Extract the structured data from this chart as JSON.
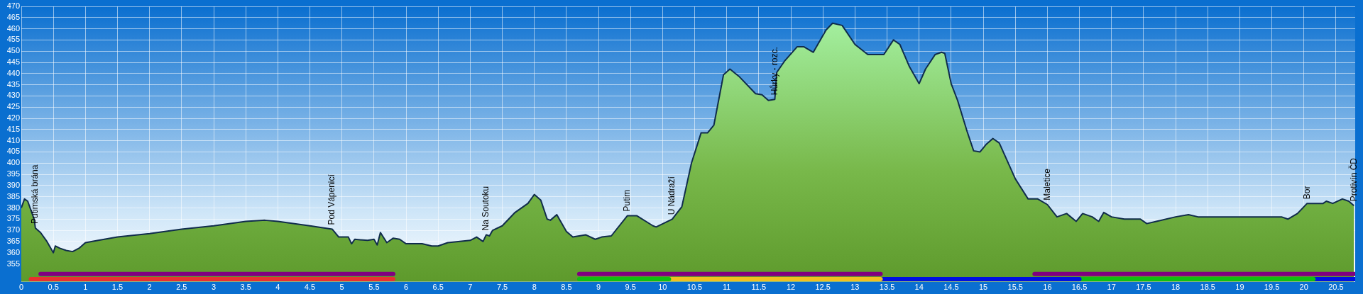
{
  "chart_data": {
    "type": "area",
    "x": [
      0,
      0.05,
      0.1,
      0.2,
      0.22,
      0.3,
      0.4,
      0.5,
      0.53,
      0.6,
      0.7,
      0.8,
      0.9,
      1.0,
      1.2,
      1.5,
      2.0,
      2.5,
      3.0,
      3.5,
      3.8,
      4.0,
      4.5,
      4.85,
      4.95,
      5.1,
      5.15,
      5.2,
      5.4,
      5.5,
      5.55,
      5.6,
      5.7,
      5.8,
      5.9,
      6.0,
      6.25,
      6.4,
      6.5,
      6.65,
      7.0,
      7.1,
      7.2,
      7.25,
      7.3,
      7.35,
      7.5,
      7.7,
      7.9,
      8.0,
      8.1,
      8.2,
      8.25,
      8.35,
      8.5,
      8.6,
      8.8,
      8.95,
      9.05,
      9.2,
      9.45,
      9.6,
      9.85,
      9.9,
      10.15,
      10.3,
      10.45,
      10.6,
      10.7,
      10.8,
      10.95,
      11.05,
      11.2,
      11.45,
      11.55,
      11.65,
      11.75,
      11.78,
      11.9,
      12.1,
      12.2,
      12.35,
      12.55,
      12.65,
      12.8,
      13.0,
      13.2,
      13.45,
      13.6,
      13.7,
      13.85,
      14.0,
      14.1,
      14.25,
      14.35,
      14.4,
      14.5,
      14.6,
      14.75,
      14.85,
      14.95,
      15.05,
      15.15,
      15.25,
      15.5,
      15.7,
      15.85,
      16.0,
      16.15,
      16.3,
      16.45,
      16.55,
      16.7,
      16.8,
      16.88,
      17.0,
      17.2,
      17.45,
      17.55,
      17.7,
      18.0,
      18.2,
      18.35,
      19.0,
      19.65,
      19.75,
      19.9,
      20.05,
      20.3,
      20.35,
      20.45,
      20.6,
      20.7,
      20.78
    ],
    "series": [
      {
        "color": "#78b84a",
        "values": [
          380,
          384,
          383,
          375,
          371,
          369,
          365,
          360,
          363,
          362,
          361,
          360.5,
          362,
          364.5,
          365.5,
          367,
          368.5,
          370.5,
          372,
          374,
          374.5,
          374,
          372,
          370.5,
          367,
          367,
          364,
          366,
          365.5,
          366,
          363.5,
          369,
          364.5,
          366.5,
          366,
          364,
          364,
          363,
          363,
          364.5,
          365.5,
          367,
          365,
          368,
          367.5,
          370,
          372,
          378,
          382,
          386,
          383.5,
          375,
          374.5,
          377,
          369.5,
          367,
          368,
          366,
          367,
          367.5,
          376.5,
          376.5,
          372,
          371.5,
          375,
          380.5,
          400,
          413.5,
          413.5,
          417,
          439.5,
          442,
          438.5,
          431,
          430.5,
          428,
          428.5,
          440.5,
          445.5,
          452,
          452,
          449.5,
          459.5,
          462.5,
          461.5,
          453,
          448.5,
          448.5,
          455,
          453,
          443,
          435.5,
          442,
          448.5,
          449.5,
          449,
          435.5,
          428,
          414,
          405.5,
          405,
          408.5,
          411,
          409,
          393,
          384,
          384,
          381.5,
          376,
          377.5,
          374,
          377.5,
          376,
          374,
          378,
          376,
          375,
          375,
          373,
          374,
          376,
          377,
          376,
          376,
          376,
          375,
          377.5,
          382,
          382,
          383,
          382,
          384,
          383,
          381
        ]
      },
      {
        "type": "line",
        "color": "#800080",
        "x": [
          0.3,
          5.8
        ],
        "values": [
          350.5,
          350.5
        ]
      },
      {
        "type": "line",
        "color": "#800080",
        "x": [
          8.7,
          13.4
        ],
        "values": [
          350.5,
          350.5
        ]
      },
      {
        "type": "line",
        "color": "#800080",
        "x": [
          15.8,
          20.8
        ],
        "values": [
          350.5,
          350.5
        ]
      },
      {
        "type": "line",
        "color": "#e83030",
        "x": [
          0.15,
          5.8
        ],
        "values": [
          348.2,
          348.2
        ]
      },
      {
        "type": "line",
        "color": "#10c010",
        "x": [
          8.7,
          10.1
        ],
        "values": [
          348.2,
          348.2
        ]
      },
      {
        "type": "line",
        "color": "#f0c020",
        "x": [
          10.1,
          13.4
        ],
        "values": [
          348.2,
          348.2
        ]
      },
      {
        "type": "line",
        "color": "#0010e0",
        "x": [
          13.4,
          16.5
        ],
        "values": [
          348.2,
          348.2
        ]
      },
      {
        "type": "line",
        "color": "#10c010",
        "x": [
          16.5,
          20.15
        ],
        "values": [
          348.2,
          348.2
        ]
      },
      {
        "type": "line",
        "color": "#0010e0",
        "x": [
          20.15,
          20.8
        ],
        "values": [
          348.2,
          348.2
        ]
      }
    ],
    "xlim": [
      0,
      20.8
    ],
    "xticks": [
      0,
      0.5,
      1,
      1.5,
      2,
      2.5,
      3,
      3.5,
      4,
      4.5,
      5,
      5.5,
      6,
      6.5,
      7,
      7.5,
      8,
      8.5,
      9,
      9.5,
      10,
      10.5,
      11,
      11.5,
      12,
      12.5,
      13,
      13.5,
      14,
      14.5,
      15,
      15.5,
      16,
      16.5,
      17,
      17.5,
      18,
      18.5,
      19,
      19.5,
      20,
      20.5
    ],
    "ylim": [
      347,
      470
    ],
    "yticks": [
      355,
      360,
      365,
      370,
      375,
      380,
      385,
      390,
      395,
      400,
      405,
      410,
      415,
      420,
      425,
      430,
      435,
      440,
      445,
      450,
      455,
      460,
      465,
      470
    ],
    "grid": true,
    "legend": false,
    "annotations": [
      {
        "text": "Putimská brána",
        "x": 0.22,
        "y": 371
      },
      {
        "text": "Pod Vápenicí",
        "x": 4.85,
        "y": 370.5
      },
      {
        "text": "Na Soutoku",
        "x": 7.25,
        "y": 368
      },
      {
        "text": "Putim",
        "x": 9.45,
        "y": 376.5
      },
      {
        "text": "U Nádraží",
        "x": 10.15,
        "y": 375
      },
      {
        "text": "Hůrky - rozc.",
        "x": 11.75,
        "y": 428.5
      },
      {
        "text": "Maletice",
        "x": 16.0,
        "y": 381.5
      },
      {
        "text": "Bor",
        "x": 20.05,
        "y": 382
      },
      {
        "text": "Protivín ČD",
        "x": 20.78,
        "y": 381
      }
    ]
  }
}
